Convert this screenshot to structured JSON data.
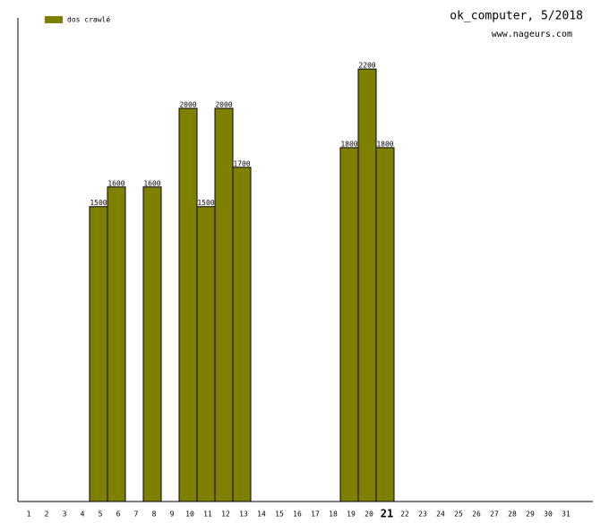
{
  "chart_data": {
    "type": "bar",
    "title": "ok_computer, 5/2018",
    "subtitle": "www.nageurs.com",
    "categories": [
      "1",
      "2",
      "3",
      "4",
      "5",
      "6",
      "7",
      "8",
      "9",
      "10",
      "11",
      "12",
      "13",
      "14",
      "15",
      "16",
      "17",
      "18",
      "19",
      "20",
      "21",
      "22",
      "23",
      "24",
      "25",
      "26",
      "27",
      "28",
      "29",
      "30",
      "31"
    ],
    "series": [
      {
        "name": "dos crawlé",
        "color": "#808000",
        "values": [
          null,
          null,
          null,
          null,
          1500,
          1600,
          null,
          1600,
          null,
          2000,
          1500,
          2000,
          1700,
          null,
          null,
          null,
          null,
          null,
          1800,
          2200,
          1800,
          null,
          null,
          null,
          null,
          null,
          null,
          null,
          null,
          null,
          null
        ]
      }
    ],
    "ylim": [
      0,
      2460
    ],
    "highlight_category": 20,
    "legend": "top-left"
  }
}
